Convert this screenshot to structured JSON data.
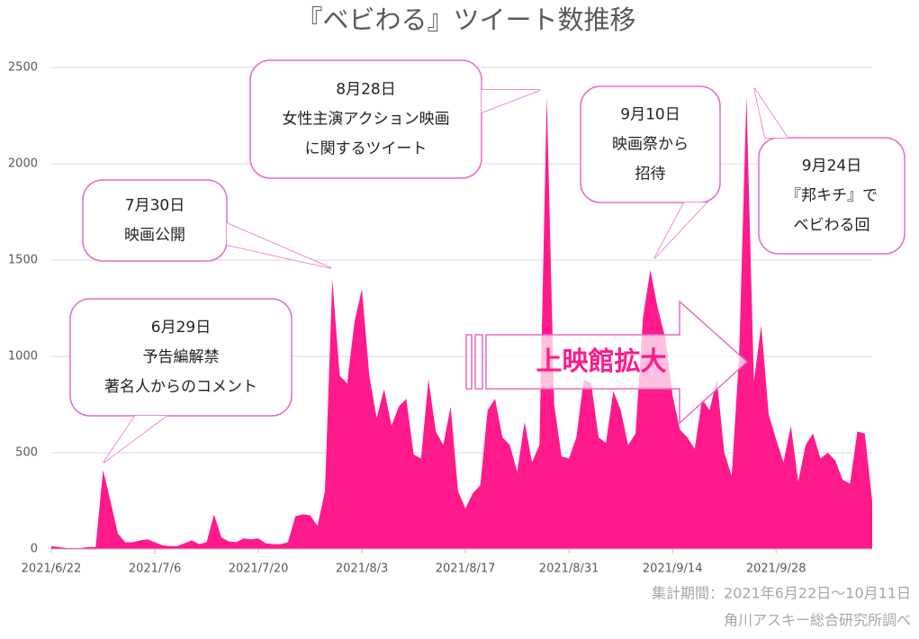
{
  "chart_data": {
    "type": "area",
    "title": "『ベビわる』ツイート数推移",
    "categories": [
      "2021/6/22",
      null,
      null,
      null,
      null,
      null,
      null,
      null,
      null,
      null,
      null,
      null,
      null,
      null,
      "2021/7/6",
      null,
      null,
      null,
      null,
      null,
      null,
      null,
      null,
      null,
      null,
      null,
      null,
      null,
      "2021/7/20",
      null,
      null,
      null,
      null,
      null,
      null,
      null,
      null,
      null,
      null,
      null,
      null,
      null,
      "2021/8/3",
      null,
      null,
      null,
      null,
      null,
      null,
      null,
      null,
      null,
      null,
      null,
      null,
      null,
      "2021/8/17",
      null,
      null,
      null,
      null,
      null,
      null,
      null,
      null,
      null,
      null,
      null,
      null,
      null,
      "2021/8/31",
      null,
      null,
      null,
      null,
      null,
      null,
      null,
      null,
      null,
      null,
      null,
      null,
      null,
      "2021/9/14",
      null,
      null,
      null,
      null,
      null,
      null,
      null,
      null,
      null,
      null,
      null,
      null,
      null,
      "2021/9/28",
      null,
      null,
      null,
      null,
      null,
      null,
      null,
      null,
      null,
      null,
      null,
      null,
      null
    ],
    "values": [
      15,
      10,
      5,
      5,
      5,
      10,
      10,
      410,
      250,
      80,
      35,
      35,
      45,
      50,
      35,
      20,
      15,
      15,
      30,
      45,
      25,
      35,
      180,
      60,
      40,
      35,
      55,
      50,
      55,
      30,
      25,
      25,
      35,
      170,
      180,
      175,
      120,
      300,
      1400,
      900,
      860,
      1180,
      1350,
      900,
      680,
      830,
      640,
      740,
      780,
      490,
      470,
      880,
      610,
      540,
      740,
      300,
      210,
      290,
      330,
      720,
      780,
      580,
      540,
      400,
      660,
      450,
      540,
      2350,
      750,
      480,
      470,
      580,
      880,
      860,
      580,
      550,
      820,
      720,
      540,
      600,
      1200,
      1450,
      1250,
      1100,
      800,
      620,
      580,
      520,
      780,
      720,
      880,
      500,
      380,
      1000,
      2350,
      870,
      1160,
      700,
      570,
      450,
      640,
      350,
      540,
      600,
      470,
      500,
      460,
      360,
      340,
      610,
      600,
      250
    ],
    "color": "#ff1a8c",
    "ylim": [
      0,
      2500
    ],
    "yticks": [
      0,
      500,
      1000,
      1500,
      2000,
      2500
    ],
    "grid": true,
    "annotations": [
      {
        "lines": [
          "6月29日",
          "予告編解禁",
          "著名人からのコメント"
        ]
      },
      {
        "lines": [
          "7月30日",
          "映画公開"
        ]
      },
      {
        "lines": [
          "8月28日",
          "女性主演アクション映画",
          "に関するツイート"
        ]
      },
      {
        "lines": [
          "9月10日",
          "映画祭から",
          "招待"
        ]
      },
      {
        "lines": [
          "9月24日",
          "『邦キチ』で",
          "ベビわる回"
        ]
      }
    ],
    "arrow_label": "上映館拡大",
    "notes": [
      "集計期間：2021年6月22日〜10月11日",
      "角川アスキー総合研究所調べ"
    ]
  }
}
